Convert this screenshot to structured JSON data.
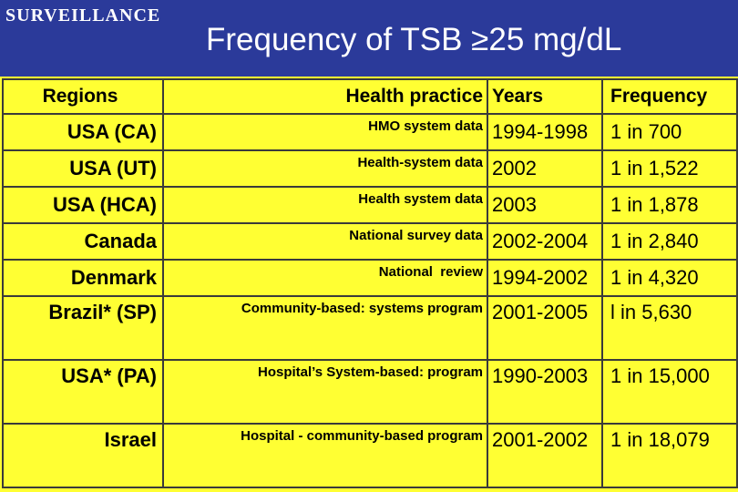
{
  "header": {
    "tag": "SURVEILLANCE",
    "title": "Frequency of TSB ≥25 mg/dL"
  },
  "table": {
    "columns": [
      "Regions",
      "Health practice",
      "Years",
      "Frequency"
    ],
    "rows": [
      {
        "region": "USA (CA)",
        "practice": "HMO system data",
        "years": "1994-1998",
        "frequency": "1 in 700"
      },
      {
        "region": "USA (UT)",
        "practice": "Health-system data",
        "years": "2002",
        "frequency": "1 in 1,522"
      },
      {
        "region": "USA (HCA)",
        "practice": "Health system data",
        "years": "2003",
        "frequency": "1 in 1,878"
      },
      {
        "region": "Canada",
        "practice": "National survey data",
        "years": "2002-2004",
        "frequency": "1 in 2,840"
      },
      {
        "region": "Denmark",
        "practice": "National  review",
        "years": "1994-2002",
        "frequency": "1 in 4,320"
      },
      {
        "region": "Brazil* (SP)",
        "practice": "Community-based: systems program",
        "years": "2001-2005",
        "frequency": "l in 5,630"
      },
      {
        "region": "USA* (PA)",
        "practice": "Hospital’s System-based: program",
        "years": "1990-2003",
        "frequency": "1 in 15,000"
      },
      {
        "region": "Israel",
        "practice": "Hospital - community-based program",
        "years": "2001-2002",
        "frequency": "1 in 18,079"
      }
    ]
  }
}
